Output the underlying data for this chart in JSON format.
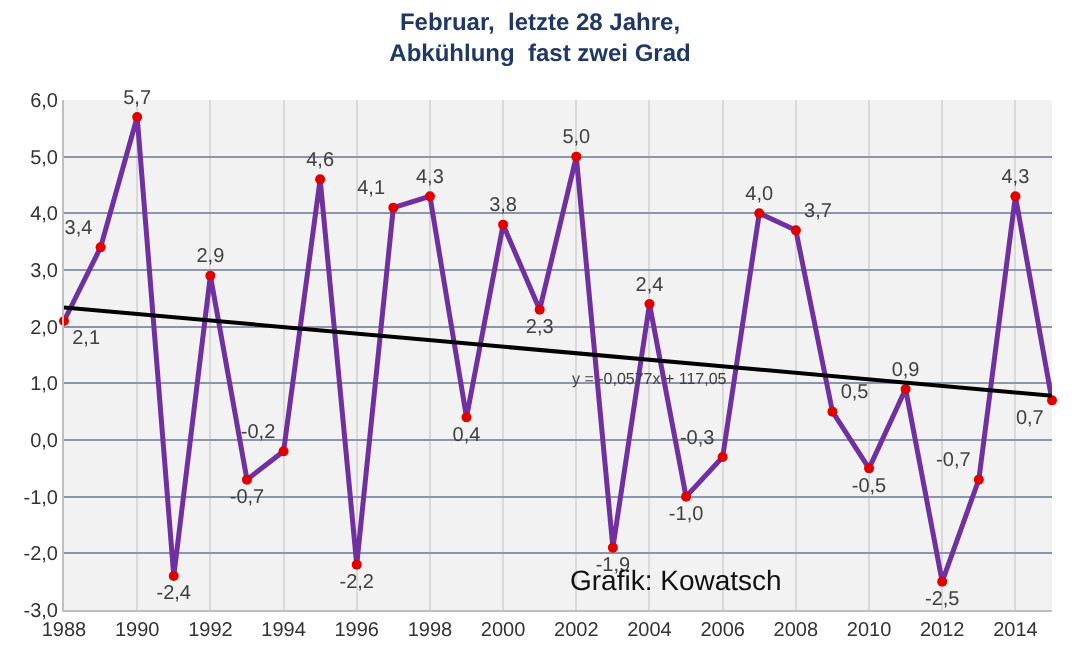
{
  "chart_data": {
    "type": "line",
    "title": "Februar,  letzte 28 Jahre,\nAbkühlung  fast zwei Grad",
    "x": [
      1988,
      1989,
      1990,
      1991,
      1992,
      1993,
      1994,
      1995,
      1996,
      1997,
      1998,
      1999,
      2000,
      2001,
      2002,
      2003,
      2004,
      2005,
      2006,
      2007,
      2008,
      2009,
      2010,
      2011,
      2012,
      2013,
      2014,
      2015
    ],
    "series": [
      {
        "color": "#7030a0",
        "values": [
          2.1,
          3.4,
          5.7,
          -2.4,
          2.9,
          -0.7,
          -0.2,
          4.6,
          -2.2,
          4.1,
          4.3,
          0.4,
          3.8,
          2.3,
          5.0,
          -1.9,
          2.4,
          -1.0,
          -0.3,
          4.0,
          3.7,
          0.5,
          -0.5,
          0.9,
          -2.5,
          -0.7,
          4.3,
          0.7
        ],
        "value_labels": [
          "2,1",
          "3,4",
          "5,7",
          "-2,4",
          "2,9",
          "-0,7",
          "-0,2",
          "4,6",
          "-2,2",
          "4,1",
          "4,3",
          "0,4",
          "3,8",
          "2,3",
          "5,0",
          "-1,9",
          "2,4",
          "-1,0",
          "-0,3",
          "4,0",
          "3,7",
          "0,5",
          "-0,5",
          "0,9",
          "-2,5",
          "-0,7",
          "4,3",
          "0,7"
        ]
      },
      {
        "type": "line",
        "color": "#000000",
        "x": [
          1988,
          2015
        ],
        "values": [
          2.34,
          0.78
        ],
        "marker": "none"
      }
    ],
    "annotations": [
      {
        "text": "y = -0,0577x + 117,05",
        "x": 2004,
        "y": 1.3
      },
      "Grafik: Kowatsch"
    ],
    "xlim": [
      1988,
      2015
    ],
    "xticks": [
      1988,
      1990,
      1992,
      1994,
      1996,
      1998,
      2000,
      2002,
      2004,
      2006,
      2008,
      2010,
      2012,
      2014
    ],
    "ylim": [
      -3,
      6
    ],
    "yticks": [
      {
        "value": -3,
        "label": "-3,0"
      },
      {
        "value": -2,
        "label": "-2,0"
      },
      {
        "value": -1,
        "label": "-1,0"
      },
      {
        "value": 0,
        "label": "0,0"
      },
      {
        "value": 1,
        "label": "1,0"
      },
      {
        "value": 2,
        "label": "2,0"
      },
      {
        "value": 3,
        "label": "3,0"
      },
      {
        "value": 4,
        "label": "4,0"
      },
      {
        "value": 5,
        "label": "5,0"
      },
      {
        "value": 6,
        "label": "6,0"
      }
    ],
    "grid": true,
    "marker": "circle",
    "line_style": "solid"
  }
}
